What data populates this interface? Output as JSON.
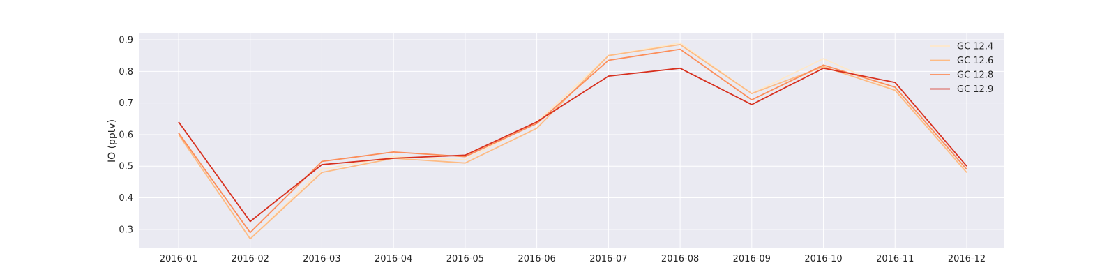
{
  "chart_data": {
    "type": "line",
    "title": "",
    "xlabel": "",
    "ylabel": "IO (pptv)",
    "x": [
      "2016-01",
      "2016-02",
      "2016-03",
      "2016-04",
      "2016-05",
      "2016-06",
      "2016-07",
      "2016-08",
      "2016-09",
      "2016-10",
      "2016-11",
      "2016-12"
    ],
    "ylim": [
      0.24,
      0.92
    ],
    "yticks": [
      "0.3",
      "0.4",
      "0.5",
      "0.6",
      "0.7",
      "0.8",
      "0.9"
    ],
    "grid": true,
    "legend_position": "top-right",
    "series": [
      {
        "name": "GC 12.4",
        "color": "#fee8c8",
        "values": [
          0.6,
          0.27,
          0.49,
          0.53,
          0.52,
          0.64,
          0.85,
          0.89,
          0.73,
          0.84,
          0.74,
          0.48
        ]
      },
      {
        "name": "GC 12.6",
        "color": "#fdbb84",
        "values": [
          0.6,
          0.27,
          0.48,
          0.525,
          0.51,
          0.62,
          0.85,
          0.885,
          0.73,
          0.815,
          0.74,
          0.48
        ]
      },
      {
        "name": "GC 12.8",
        "color": "#fc8d59",
        "values": [
          0.605,
          0.29,
          0.515,
          0.545,
          0.53,
          0.635,
          0.835,
          0.87,
          0.71,
          0.82,
          0.75,
          0.49
        ]
      },
      {
        "name": "GC 12.9",
        "color": "#d7301f",
        "values": [
          0.64,
          0.325,
          0.505,
          0.525,
          0.535,
          0.64,
          0.785,
          0.81,
          0.695,
          0.81,
          0.765,
          0.5
        ]
      }
    ]
  }
}
